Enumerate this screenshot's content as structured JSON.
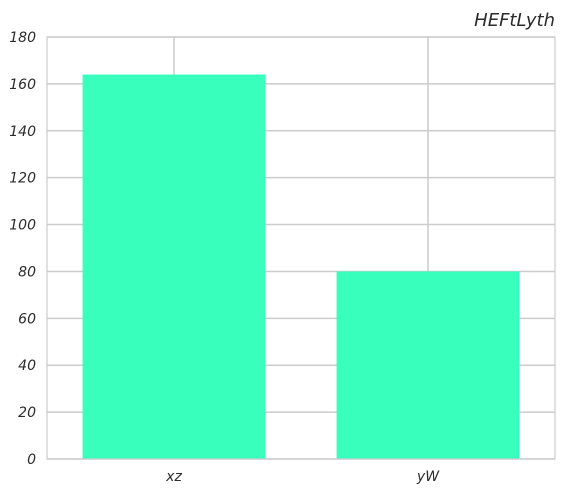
{
  "chart_data": {
    "type": "bar",
    "title": "HEFtLyth",
    "xlabel": "",
    "ylabel": "",
    "categories": [
      "xz",
      "yW"
    ],
    "values": [
      164,
      80
    ],
    "ylim": [
      0,
      180
    ],
    "yticks": [
      0,
      20,
      40,
      60,
      80,
      100,
      120,
      140,
      160,
      180
    ],
    "grid": true,
    "colors": {
      "bar": "#39ffbd",
      "grid": "#cccccc",
      "text": "#2b2b2b"
    }
  }
}
